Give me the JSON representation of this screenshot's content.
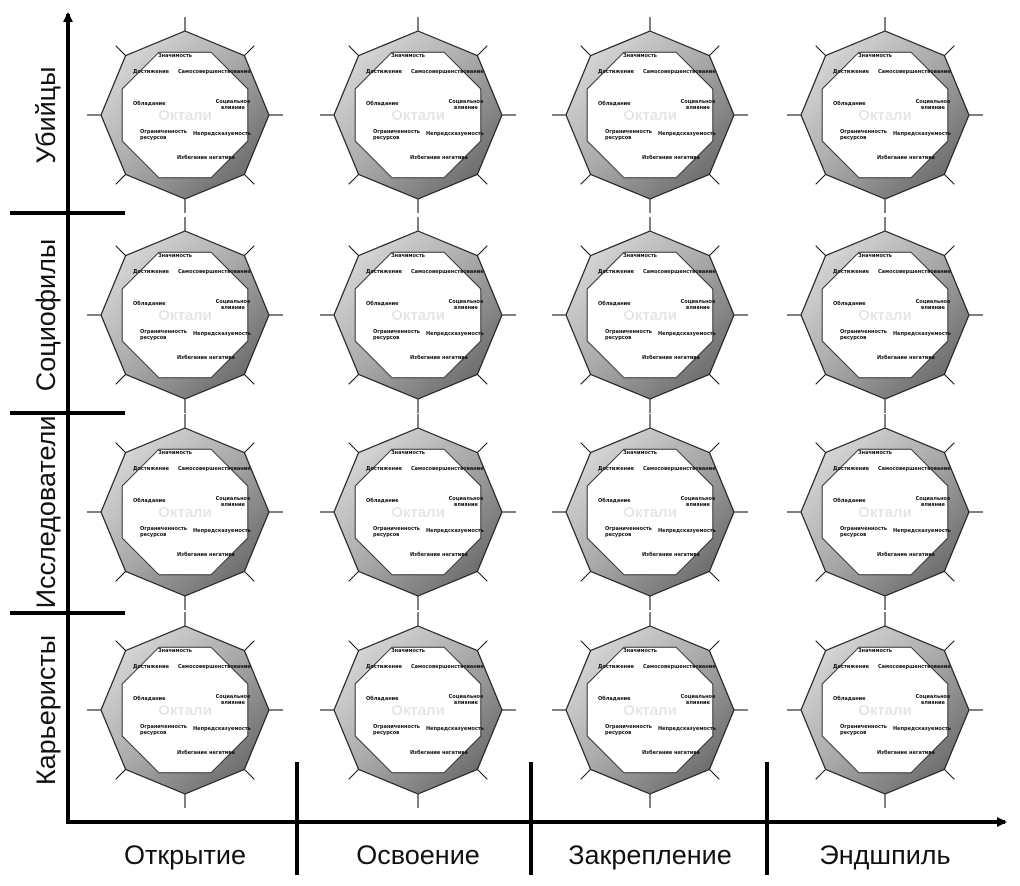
{
  "axes": {
    "rows": [
      "Убийцы",
      "Социофилы",
      "Исследователи",
      "Карьеристы"
    ],
    "columns": [
      "Открытие",
      "Освоение",
      "Закрепление",
      "Эндшпиль"
    ]
  },
  "octagon": {
    "watermark": "Октали",
    "labels": [
      [
        "Значимость"
      ],
      [
        "Достижение"
      ],
      [
        "Самосовершенствование"
      ],
      [
        "Обладание"
      ],
      [
        "Социальное",
        "влияние"
      ],
      [
        "Ограниченность",
        "ресурсов"
      ],
      [
        "Непредсказуемость"
      ],
      [
        "Избегание негатива"
      ]
    ]
  }
}
